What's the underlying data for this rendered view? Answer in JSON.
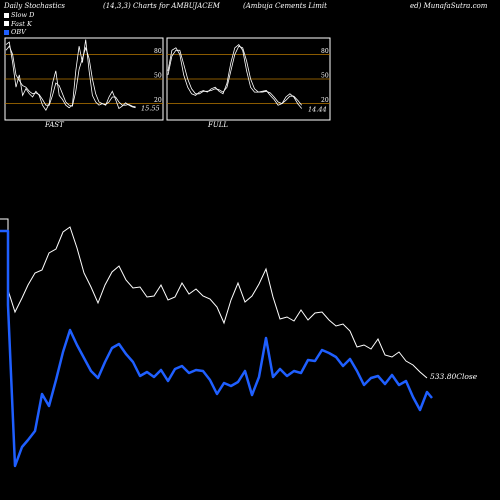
{
  "header": {
    "left": "Daily Stochastics",
    "params": "(14,3,3) Charts for AMBUJACEM",
    "company": "(Ambuja  Cements Limit",
    "source": "ed) MunafaSutra.com"
  },
  "legend": [
    {
      "label": "Slow  D",
      "color": "#ffffff"
    },
    {
      "label": "Fast K",
      "color": "#ffffff"
    },
    {
      "label": "OBV",
      "color": "#1f5fff"
    }
  ],
  "colors": {
    "background": "#000000",
    "grid": "#b87800",
    "price": "#ffffff",
    "obv": "#1f5fff"
  },
  "chart_data": [
    {
      "type": "line",
      "title": "FAST",
      "ylim": [
        0,
        100
      ],
      "y_ticks": [
        20,
        50,
        80
      ],
      "value_label": "15.55",
      "series": [
        {
          "name": "Fast K",
          "values": [
            92,
            95,
            70,
            40,
            55,
            30,
            38,
            32,
            28,
            35,
            30,
            18,
            12,
            20,
            45,
            60,
            30,
            25,
            18,
            15,
            18,
            60,
            90,
            70,
            98,
            60,
            30,
            22,
            18,
            20,
            18,
            28,
            35,
            25,
            14,
            17,
            21,
            18,
            16,
            15
          ]
        },
        {
          "name": "Slow  D",
          "values": [
            85,
            90,
            80,
            55,
            48,
            42,
            40,
            35,
            32,
            33,
            31,
            25,
            18,
            18,
            30,
            45,
            42,
            32,
            22,
            18,
            17,
            35,
            62,
            75,
            88,
            75,
            50,
            32,
            22,
            20,
            19,
            22,
            28,
            28,
            22,
            18,
            18,
            19,
            17,
            16
          ]
        }
      ]
    },
    {
      "type": "line",
      "title": "FULL",
      "ylim": [
        0,
        100
      ],
      "y_ticks": [
        20,
        50,
        80
      ],
      "value_label": "14.44",
      "series": [
        {
          "name": "Fast K",
          "values": [
            60,
            85,
            88,
            80,
            55,
            40,
            32,
            30,
            34,
            36,
            34,
            38,
            40,
            35,
            32,
            45,
            70,
            88,
            92,
            85,
            60,
            40,
            34,
            34,
            35,
            36,
            30,
            25,
            18,
            20,
            28,
            32,
            28,
            20,
            14
          ]
        },
        {
          "name": "Slow  D",
          "values": [
            55,
            78,
            85,
            85,
            68,
            50,
            38,
            32,
            32,
            35,
            35,
            36,
            38,
            37,
            34,
            40,
            60,
            80,
            90,
            88,
            72,
            50,
            38,
            34,
            34,
            35,
            33,
            28,
            22,
            20,
            24,
            29,
            29,
            24,
            18
          ]
        }
      ]
    },
    {
      "type": "line",
      "title": "",
      "value_label": "533.80Close",
      "series": [
        {
          "name": "Close",
          "values": [
            0,
            0,
            0,
            0,
            0,
            0,
            0,
            0,
            0,
            0,
            0,
            0,
            0,
            0,
            0,
            0,
            0,
            0,
            0,
            0,
            0,
            0,
            0,
            0,
            0,
            0,
            0,
            0,
            0,
            0,
            0,
            0,
            0,
            0,
            0,
            0,
            0,
            0,
            0,
            0,
            0,
            0,
            0,
            0,
            0,
            0,
            0,
            0,
            0,
            0,
            0,
            0,
            0,
            0
          ]
        },
        {
          "name": "OBV",
          "values": [
            0,
            0,
            0,
            0,
            0,
            0,
            0,
            0,
            0,
            0,
            0,
            0,
            0,
            0,
            0,
            0,
            0,
            0,
            0,
            0,
            0,
            0,
            0,
            0,
            0,
            0,
            0,
            0,
            0,
            0,
            0,
            0,
            0,
            0,
            0,
            0,
            0,
            0,
            0,
            0,
            0,
            0,
            0,
            0,
            0,
            0,
            0,
            0,
            0,
            0,
            0,
            0,
            0,
            0
          ]
        }
      ]
    }
  ]
}
